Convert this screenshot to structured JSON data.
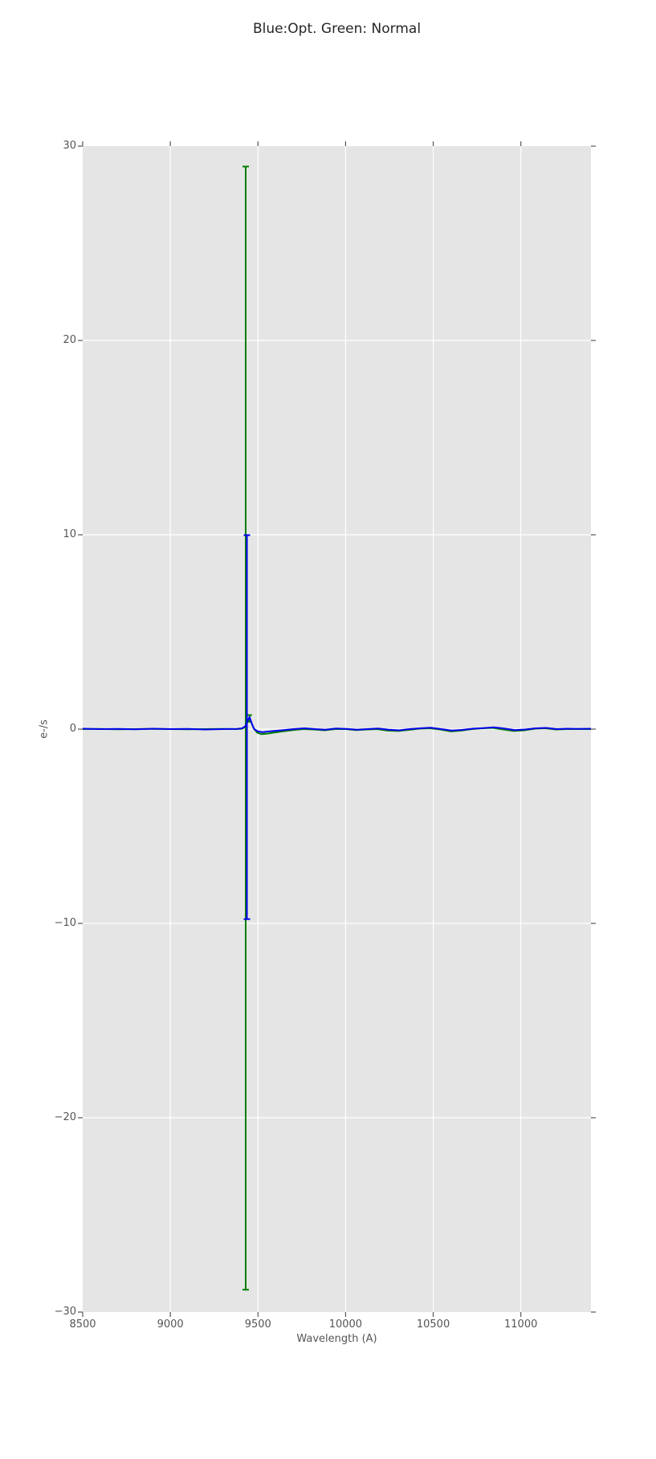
{
  "chart_data": {
    "type": "line",
    "title": "Blue:Opt. Green: Normal",
    "xlabel": "Wavelength (A)",
    "ylabel": "e-/s",
    "xlim": [
      8500,
      11400
    ],
    "ylim": [
      -30,
      30
    ],
    "grid": true,
    "background": "#e5e5e5",
    "gridline_color": "#ffffff",
    "tick_color": "#555555",
    "xticks": [
      {
        "v": 8500,
        "label": "8500"
      },
      {
        "v": 9000,
        "label": "9000"
      },
      {
        "v": 9500,
        "label": "9500"
      },
      {
        "v": 10000,
        "label": "10000"
      },
      {
        "v": 10500,
        "label": "10500"
      },
      {
        "v": 11000,
        "label": "11000"
      }
    ],
    "yticks": [
      {
        "v": 30,
        "label": "30"
      },
      {
        "v": 20,
        "label": "20"
      },
      {
        "v": 10,
        "label": "10"
      },
      {
        "v": 0,
        "label": "0"
      },
      {
        "v": -10,
        "label": "−10"
      },
      {
        "v": -20,
        "label": "−20"
      },
      {
        "v": -30,
        "label": "−30"
      }
    ],
    "series": [
      {
        "name": "Normal",
        "color": "#008000",
        "x": [
          8500,
          8600,
          8700,
          8800,
          8900,
          9000,
          9100,
          9200,
          9300,
          9380,
          9410,
          9425,
          9440,
          9450,
          9460,
          9475,
          9495,
          9520,
          9550,
          9590,
          9640,
          9700,
          9760,
          9820,
          9880,
          9940,
          10000,
          10060,
          10120,
          10180,
          10240,
          10300,
          10360,
          10420,
          10480,
          10540,
          10600,
          10660,
          10720,
          10780,
          10840,
          10900,
          10960,
          11020,
          11080,
          11140,
          11200,
          11260,
          11320,
          11400
        ],
        "y": [
          0.0,
          0.01,
          -0.01,
          0.0,
          0.01,
          0.0,
          -0.01,
          0.0,
          0.01,
          0.0,
          0.02,
          0.1,
          0.35,
          0.55,
          0.4,
          0.05,
          -0.18,
          -0.26,
          -0.24,
          -0.18,
          -0.12,
          -0.05,
          0.0,
          -0.02,
          -0.06,
          0.0,
          0.0,
          -0.05,
          -0.02,
          0.0,
          -0.08,
          -0.1,
          -0.04,
          0.02,
          0.04,
          -0.02,
          -0.12,
          -0.08,
          0.0,
          0.04,
          0.06,
          -0.02,
          -0.1,
          -0.06,
          0.02,
          0.04,
          -0.02,
          0.0,
          0.0,
          0.0
        ],
        "errorbars": [
          {
            "x": 9430,
            "y": 0.05,
            "yerr": 28.9,
            "cap": 4
          },
          {
            "x": 9452,
            "y": 0.55,
            "yerr": 0.17,
            "cap": 3
          }
        ]
      },
      {
        "name": "Opt",
        "color": "#0000ee",
        "x": [
          8500,
          8600,
          8700,
          8800,
          8900,
          9000,
          9100,
          9200,
          9300,
          9380,
          9410,
          9428,
          9442,
          9452,
          9462,
          9478,
          9500,
          9525,
          9555,
          9595,
          9645,
          9705,
          9765,
          9825,
          9885,
          9945,
          10005,
          10065,
          10125,
          10185,
          10245,
          10305,
          10365,
          10425,
          10485,
          10545,
          10605,
          10665,
          10725,
          10785,
          10845,
          10905,
          10965,
          11025,
          11085,
          11145,
          11205,
          11265,
          11325,
          11400
        ],
        "y": [
          0.02,
          0.0,
          0.01,
          -0.01,
          0.02,
          0.0,
          0.01,
          -0.02,
          0.0,
          0.01,
          0.04,
          0.15,
          0.45,
          0.62,
          0.35,
          0.0,
          -0.12,
          -0.16,
          -0.13,
          -0.09,
          -0.05,
          0.0,
          0.04,
          0.0,
          -0.03,
          0.03,
          0.01,
          -0.03,
          0.0,
          0.03,
          -0.03,
          -0.06,
          0.0,
          0.04,
          0.07,
          0.0,
          -0.07,
          -0.04,
          0.02,
          0.05,
          0.09,
          0.03,
          -0.05,
          -0.02,
          0.04,
          0.06,
          0.0,
          0.02,
          0.01,
          0.02
        ],
        "errorbars": [
          {
            "x": 9437,
            "y": 0.1,
            "yerr": 9.88,
            "cap": 4
          }
        ]
      }
    ]
  }
}
